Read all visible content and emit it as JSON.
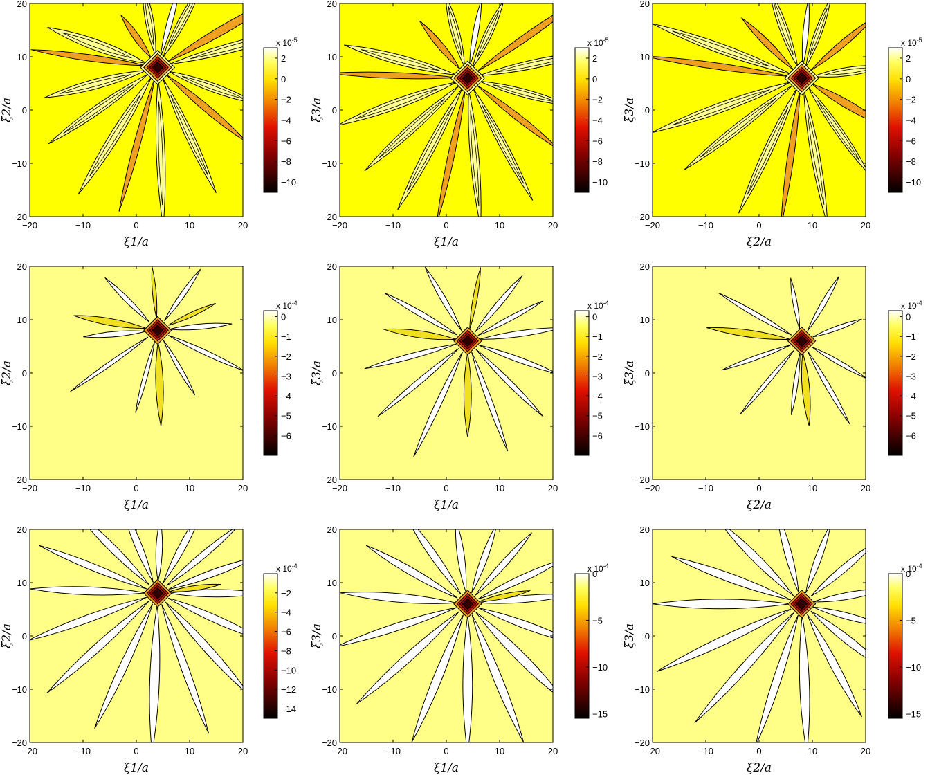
{
  "chart_data": [
    {
      "type": "contour",
      "row": 0,
      "col": 0,
      "xlabel": "ξ1/a",
      "ylabel": "ξ2/a",
      "xlim": [
        -20,
        20
      ],
      "ylim": [
        -20,
        20
      ],
      "xticks": [
        -20,
        -10,
        0,
        10,
        20
      ],
      "yticks": [
        -20,
        -10,
        0,
        10,
        20
      ],
      "center": [
        4,
        8
      ],
      "colorbar": {
        "exponent": "x 10-5",
        "ticks": [
          2,
          0,
          -2,
          -4,
          -6,
          -8,
          -10
        ],
        "range": [
          -11,
          3
        ]
      },
      "fill_level": "yellow",
      "rays": [
        {
          "a": 15,
          "len": 30,
          "w": 1.8,
          "lv": 1
        },
        {
          "a": 30,
          "len": 28,
          "w": 1.6,
          "lv": 2
        },
        {
          "a": 62,
          "len": 18,
          "w": 1.4,
          "lv": 1
        },
        {
          "a": 75,
          "len": 16,
          "w": 1.0,
          "lv": 3
        },
        {
          "a": 100,
          "len": 16,
          "w": 1.5,
          "lv": 1
        },
        {
          "a": 125,
          "len": 12,
          "w": 1.2,
          "lv": 2
        },
        {
          "a": 160,
          "len": 22,
          "w": 2.0,
          "lv": 1
        },
        {
          "a": 172,
          "len": 24,
          "w": 1.2,
          "lv": 2
        },
        {
          "a": 195,
          "len": 22,
          "w": 1.8,
          "lv": 1
        },
        {
          "a": 215,
          "len": 25,
          "w": 1.6,
          "lv": 1
        },
        {
          "a": 238,
          "len": 28,
          "w": 1.8,
          "lv": 1
        },
        {
          "a": 255,
          "len": 28,
          "w": 1.2,
          "lv": 2
        },
        {
          "a": 272,
          "len": 30,
          "w": 1.6,
          "lv": 1
        },
        {
          "a": 295,
          "len": 26,
          "w": 1.5,
          "lv": 1
        },
        {
          "a": 320,
          "len": 22,
          "w": 1.3,
          "lv": 2
        },
        {
          "a": 340,
          "len": 20,
          "w": 1.6,
          "lv": 1
        }
      ]
    },
    {
      "type": "contour",
      "row": 0,
      "col": 1,
      "xlabel": "ξ1/a",
      "ylabel": "ξ3/a",
      "xlim": [
        -20,
        20
      ],
      "ylim": [
        -20,
        20
      ],
      "xticks": [
        -20,
        -10,
        0,
        10,
        20
      ],
      "yticks": [
        -20,
        -10,
        0,
        10,
        20
      ],
      "center": [
        4,
        6
      ],
      "colorbar": {
        "exponent": "x 10-5",
        "ticks": [
          2,
          0,
          -2,
          -4,
          -6,
          -8,
          -10
        ],
        "range": [
          -11,
          3
        ]
      },
      "fill_level": "yellow",
      "rays": [
        {
          "a": 12,
          "len": 24,
          "w": 1.6,
          "lv": 1
        },
        {
          "a": 35,
          "len": 26,
          "w": 1.3,
          "lv": 2
        },
        {
          "a": 65,
          "len": 16,
          "w": 1.4,
          "lv": 1
        },
        {
          "a": 80,
          "len": 15,
          "w": 1.0,
          "lv": 3
        },
        {
          "a": 105,
          "len": 16,
          "w": 1.5,
          "lv": 1
        },
        {
          "a": 130,
          "len": 14,
          "w": 1.2,
          "lv": 2
        },
        {
          "a": 165,
          "len": 24,
          "w": 1.8,
          "lv": 1
        },
        {
          "a": 178,
          "len": 26,
          "w": 1.1,
          "lv": 2
        },
        {
          "a": 200,
          "len": 26,
          "w": 1.8,
          "lv": 1
        },
        {
          "a": 222,
          "len": 26,
          "w": 1.6,
          "lv": 1
        },
        {
          "a": 242,
          "len": 28,
          "w": 1.7,
          "lv": 1
        },
        {
          "a": 258,
          "len": 28,
          "w": 1.2,
          "lv": 2
        },
        {
          "a": 275,
          "len": 28,
          "w": 1.6,
          "lv": 1
        },
        {
          "a": 298,
          "len": 26,
          "w": 1.4,
          "lv": 1
        },
        {
          "a": 322,
          "len": 22,
          "w": 1.2,
          "lv": 2
        },
        {
          "a": 345,
          "len": 20,
          "w": 1.5,
          "lv": 1
        }
      ]
    },
    {
      "type": "contour",
      "row": 0,
      "col": 2,
      "xlabel": "ξ2/a",
      "ylabel": "ξ3/a",
      "xlim": [
        -20,
        20
      ],
      "ylim": [
        -20,
        20
      ],
      "xticks": [
        -20,
        -10,
        0,
        10,
        20
      ],
      "yticks": [
        -20,
        -10,
        0,
        10,
        20
      ],
      "center": [
        8,
        6
      ],
      "colorbar": {
        "exponent": "x 10-5",
        "ticks": [
          2,
          0,
          -2,
          -4,
          -6,
          -8,
          -10
        ],
        "range": [
          -11,
          3
        ]
      },
      "fill_level": "yellow",
      "rays": [
        {
          "a": 8,
          "len": 16,
          "w": 1.6,
          "lv": 1
        },
        {
          "a": 40,
          "len": 18,
          "w": 1.2,
          "lv": 2
        },
        {
          "a": 70,
          "len": 16,
          "w": 1.3,
          "lv": 1
        },
        {
          "a": 85,
          "len": 15,
          "w": 1.0,
          "lv": 3
        },
        {
          "a": 110,
          "len": 18,
          "w": 1.5,
          "lv": 1
        },
        {
          "a": 135,
          "len": 16,
          "w": 1.2,
          "lv": 2
        },
        {
          "a": 160,
          "len": 30,
          "w": 1.8,
          "lv": 1
        },
        {
          "a": 172,
          "len": 30,
          "w": 1.2,
          "lv": 2
        },
        {
          "a": 200,
          "len": 30,
          "w": 1.8,
          "lv": 1
        },
        {
          "a": 218,
          "len": 28,
          "w": 1.6,
          "lv": 1
        },
        {
          "a": 245,
          "len": 28,
          "w": 1.6,
          "lv": 1
        },
        {
          "a": 262,
          "len": 28,
          "w": 1.2,
          "lv": 2
        },
        {
          "a": 280,
          "len": 28,
          "w": 1.6,
          "lv": 1
        },
        {
          "a": 305,
          "len": 22,
          "w": 1.4,
          "lv": 1
        },
        {
          "a": 330,
          "len": 18,
          "w": 1.5,
          "lv": 2
        }
      ]
    },
    {
      "type": "contour",
      "row": 1,
      "col": 0,
      "xlabel": "ξ1/a",
      "ylabel": "ξ2/a",
      "xlim": [
        -20,
        20
      ],
      "ylim": [
        -20,
        20
      ],
      "xticks": [
        -20,
        -10,
        0,
        10,
        20
      ],
      "yticks": [
        -20,
        -10,
        0,
        10,
        20
      ],
      "center": [
        4,
        8
      ],
      "colorbar": {
        "exponent": "x 10-4",
        "ticks": [
          0,
          -1,
          -2,
          -3,
          -4,
          -5,
          -6
        ],
        "range": [
          -7,
          0.3
        ]
      },
      "fill_level": "pale",
      "rays": [
        {
          "a": 5,
          "len": 14,
          "w": 1.0,
          "lv": 0
        },
        {
          "a": 25,
          "len": 12,
          "w": 0.8,
          "lv": 1
        },
        {
          "a": 55,
          "len": 14,
          "w": 0.9,
          "lv": 0
        },
        {
          "a": 95,
          "len": 12,
          "w": 0.7,
          "lv": 1
        },
        {
          "a": 135,
          "len": 14,
          "w": 0.9,
          "lv": 0
        },
        {
          "a": 170,
          "len": 16,
          "w": 1.3,
          "lv": 2
        },
        {
          "a": 185,
          "len": 14,
          "w": 1.0,
          "lv": 0
        },
        {
          "a": 215,
          "len": 20,
          "w": 0.8,
          "lv": 0
        },
        {
          "a": 255,
          "len": 16,
          "w": 0.8,
          "lv": 0
        },
        {
          "a": 272,
          "len": 18,
          "w": 1.4,
          "lv": 2
        },
        {
          "a": 300,
          "len": 14,
          "w": 0.8,
          "lv": 0
        },
        {
          "a": 335,
          "len": 18,
          "w": 0.9,
          "lv": 0
        }
      ]
    },
    {
      "type": "contour",
      "row": 1,
      "col": 1,
      "xlabel": "ξ1/a",
      "ylabel": "ξ3/a",
      "xlim": [
        -20,
        20
      ],
      "ylim": [
        -20,
        20
      ],
      "xticks": [
        -20,
        -10,
        0,
        10,
        20
      ],
      "yticks": [
        -20,
        -10,
        0,
        10,
        20
      ],
      "center": [
        4,
        6
      ],
      "colorbar": {
        "exponent": "x 10-4",
        "ticks": [
          0,
          -1,
          -2,
          -3,
          -4,
          -5,
          -6
        ],
        "range": [
          -7,
          0.3
        ]
      },
      "fill_level": "pale",
      "rays": [
        {
          "a": 8,
          "len": 18,
          "w": 1.1,
          "lv": 0
        },
        {
          "a": 28,
          "len": 16,
          "w": 0.9,
          "lv": 0
        },
        {
          "a": 50,
          "len": 16,
          "w": 1.0,
          "lv": 0
        },
        {
          "a": 80,
          "len": 14,
          "w": 0.8,
          "lv": 1
        },
        {
          "a": 120,
          "len": 16,
          "w": 1.0,
          "lv": 0
        },
        {
          "a": 150,
          "len": 18,
          "w": 1.0,
          "lv": 0
        },
        {
          "a": 172,
          "len": 16,
          "w": 1.3,
          "lv": 2
        },
        {
          "a": 195,
          "len": 20,
          "w": 1.0,
          "lv": 0
        },
        {
          "a": 220,
          "len": 22,
          "w": 1.0,
          "lv": 0
        },
        {
          "a": 245,
          "len": 24,
          "w": 1.1,
          "lv": 0
        },
        {
          "a": 270,
          "len": 18,
          "w": 1.4,
          "lv": 2
        },
        {
          "a": 290,
          "len": 22,
          "w": 1.0,
          "lv": 0
        },
        {
          "a": 315,
          "len": 20,
          "w": 1.0,
          "lv": 0
        },
        {
          "a": 340,
          "len": 18,
          "w": 1.0,
          "lv": 0
        }
      ]
    },
    {
      "type": "contour",
      "row": 1,
      "col": 2,
      "xlabel": "ξ2/a",
      "ylabel": "ξ3/a",
      "xlim": [
        -20,
        20
      ],
      "ylim": [
        -20,
        20
      ],
      "xticks": [
        -20,
        -10,
        0,
        10,
        20
      ],
      "yticks": [
        -20,
        -10,
        0,
        10,
        20
      ],
      "center": [
        8,
        6
      ],
      "colorbar": {
        "exponent": "x 10-4",
        "ticks": [
          0,
          -1,
          -2,
          -3,
          -4,
          -5,
          -6
        ],
        "range": [
          -7,
          0.3
        ]
      },
      "fill_level": "pale",
      "rays": [
        {
          "a": 20,
          "len": 12,
          "w": 0.8,
          "lv": 0
        },
        {
          "a": 60,
          "len": 14,
          "w": 0.9,
          "lv": 0
        },
        {
          "a": 100,
          "len": 12,
          "w": 0.8,
          "lv": 0
        },
        {
          "a": 150,
          "len": 18,
          "w": 0.9,
          "lv": 0
        },
        {
          "a": 172,
          "len": 18,
          "w": 1.3,
          "lv": 2
        },
        {
          "a": 200,
          "len": 16,
          "w": 0.8,
          "lv": 0
        },
        {
          "a": 230,
          "len": 18,
          "w": 0.8,
          "lv": 0
        },
        {
          "a": 262,
          "len": 14,
          "w": 0.8,
          "lv": 0
        },
        {
          "a": 275,
          "len": 16,
          "w": 1.4,
          "lv": 2
        },
        {
          "a": 300,
          "len": 18,
          "w": 0.9,
          "lv": 0
        },
        {
          "a": 330,
          "len": 14,
          "w": 0.8,
          "lv": 0
        }
      ]
    },
    {
      "type": "contour",
      "row": 2,
      "col": 0,
      "xlabel": "ξ1/a",
      "ylabel": "ξ2/a",
      "xlim": [
        -20,
        20
      ],
      "ylim": [
        -20,
        20
      ],
      "xticks": [
        -20,
        -10,
        0,
        10,
        20
      ],
      "yticks": [
        -20,
        -10,
        0,
        10,
        20
      ],
      "center": [
        4,
        8
      ],
      "colorbar": {
        "exponent": "x 10-4",
        "ticks": [
          -2,
          -4,
          -6,
          -8,
          -10,
          -12,
          -14
        ],
        "range": [
          -15,
          0
        ]
      },
      "fill_level": "pale",
      "rays": [
        {
          "a": 0,
          "len": 20,
          "w": 1.4,
          "lv": 0
        },
        {
          "a": 20,
          "len": 20,
          "w": 1.3,
          "lv": 0
        },
        {
          "a": 40,
          "len": 20,
          "w": 1.2,
          "lv": 0
        },
        {
          "a": 62,
          "len": 18,
          "w": 1.3,
          "lv": 0
        },
        {
          "a": 88,
          "len": 14,
          "w": 1.2,
          "lv": 0
        },
        {
          "a": 112,
          "len": 18,
          "w": 1.3,
          "lv": 0
        },
        {
          "a": 135,
          "len": 22,
          "w": 1.4,
          "lv": 0
        },
        {
          "a": 158,
          "len": 24,
          "w": 1.3,
          "lv": 0
        },
        {
          "a": 178,
          "len": 24,
          "w": 1.5,
          "lv": 0
        },
        {
          "a": 200,
          "len": 26,
          "w": 1.4,
          "lv": 0
        },
        {
          "a": 222,
          "len": 28,
          "w": 1.5,
          "lv": 0
        },
        {
          "a": 245,
          "len": 28,
          "w": 1.5,
          "lv": 0
        },
        {
          "a": 268,
          "len": 30,
          "w": 1.8,
          "lv": 0
        },
        {
          "a": 290,
          "len": 28,
          "w": 1.4,
          "lv": 0
        },
        {
          "a": 312,
          "len": 26,
          "w": 1.5,
          "lv": 0
        },
        {
          "a": 336,
          "len": 22,
          "w": 1.4,
          "lv": 0
        },
        {
          "a": 8,
          "len": 12,
          "w": 0.9,
          "lv": 1
        }
      ]
    },
    {
      "type": "contour",
      "row": 2,
      "col": 1,
      "xlabel": "ξ1/a",
      "ylabel": "ξ3/a",
      "xlim": [
        -20,
        20
      ],
      "ylim": [
        -20,
        20
      ],
      "xticks": [
        -20,
        -10,
        0,
        10,
        20
      ],
      "yticks": [
        -20,
        -10,
        0,
        10,
        20
      ],
      "center": [
        4,
        6
      ],
      "colorbar": {
        "exponent": "x 10-4",
        "ticks": [
          0,
          -5,
          -10,
          -15
        ],
        "range": [
          -15.5,
          0
        ]
      },
      "fill_level": "pale",
      "rays": [
        {
          "a": 5,
          "len": 20,
          "w": 1.3,
          "lv": 0
        },
        {
          "a": 25,
          "len": 20,
          "w": 1.3,
          "lv": 0
        },
        {
          "a": 48,
          "len": 18,
          "w": 1.2,
          "lv": 0
        },
        {
          "a": 70,
          "len": 16,
          "w": 1.2,
          "lv": 0
        },
        {
          "a": 98,
          "len": 16,
          "w": 1.3,
          "lv": 0
        },
        {
          "a": 125,
          "len": 20,
          "w": 1.4,
          "lv": 0
        },
        {
          "a": 150,
          "len": 22,
          "w": 1.4,
          "lv": 0
        },
        {
          "a": 175,
          "len": 24,
          "w": 1.6,
          "lv": 0
        },
        {
          "a": 198,
          "len": 26,
          "w": 1.4,
          "lv": 0
        },
        {
          "a": 222,
          "len": 28,
          "w": 1.6,
          "lv": 0
        },
        {
          "a": 248,
          "len": 28,
          "w": 1.6,
          "lv": 0
        },
        {
          "a": 270,
          "len": 28,
          "w": 1.8,
          "lv": 0
        },
        {
          "a": 292,
          "len": 28,
          "w": 1.6,
          "lv": 0
        },
        {
          "a": 315,
          "len": 26,
          "w": 1.8,
          "lv": 0
        },
        {
          "a": 340,
          "len": 22,
          "w": 1.4,
          "lv": 0
        },
        {
          "a": 12,
          "len": 12,
          "w": 0.9,
          "lv": 1
        }
      ]
    },
    {
      "type": "contour",
      "row": 2,
      "col": 2,
      "xlabel": "ξ2/a",
      "ylabel": "ξ3/a",
      "xlim": [
        -20,
        20
      ],
      "ylim": [
        -20,
        20
      ],
      "xticks": [
        -20,
        -10,
        0,
        10,
        20
      ],
      "yticks": [
        -20,
        -10,
        0,
        10,
        20
      ],
      "center": [
        8,
        6
      ],
      "colorbar": {
        "exponent": "x 10-4",
        "ticks": [
          0,
          -5,
          -10,
          -15
        ],
        "range": [
          -15.5,
          0
        ]
      },
      "fill_level": "pale",
      "rays": [
        {
          "a": 10,
          "len": 16,
          "w": 1.3,
          "lv": 0
        },
        {
          "a": 40,
          "len": 18,
          "w": 1.3,
          "lv": 0
        },
        {
          "a": 70,
          "len": 16,
          "w": 1.2,
          "lv": 0
        },
        {
          "a": 105,
          "len": 18,
          "w": 1.3,
          "lv": 0
        },
        {
          "a": 135,
          "len": 22,
          "w": 1.5,
          "lv": 0
        },
        {
          "a": 160,
          "len": 26,
          "w": 1.6,
          "lv": 0
        },
        {
          "a": 180,
          "len": 28,
          "w": 1.8,
          "lv": 0
        },
        {
          "a": 205,
          "len": 30,
          "w": 1.6,
          "lv": 0
        },
        {
          "a": 228,
          "len": 30,
          "w": 1.6,
          "lv": 0
        },
        {
          "a": 252,
          "len": 28,
          "w": 1.5,
          "lv": 0
        },
        {
          "a": 272,
          "len": 28,
          "w": 1.8,
          "lv": 0
        },
        {
          "a": 298,
          "len": 24,
          "w": 1.5,
          "lv": 0
        },
        {
          "a": 322,
          "len": 20,
          "w": 1.5,
          "lv": 0
        },
        {
          "a": 345,
          "len": 16,
          "w": 1.2,
          "lv": 0
        }
      ]
    }
  ],
  "colors": {
    "background_top": "#ffff00",
    "background_other": "#ffff88",
    "level_white": "#ffffff",
    "level_pale": "#ffff90",
    "level_yellow": "#f0e020",
    "level_orange": "#f0a020",
    "level_red": "#d82000",
    "level_dark": "#300000",
    "contour_line": "#000000"
  }
}
